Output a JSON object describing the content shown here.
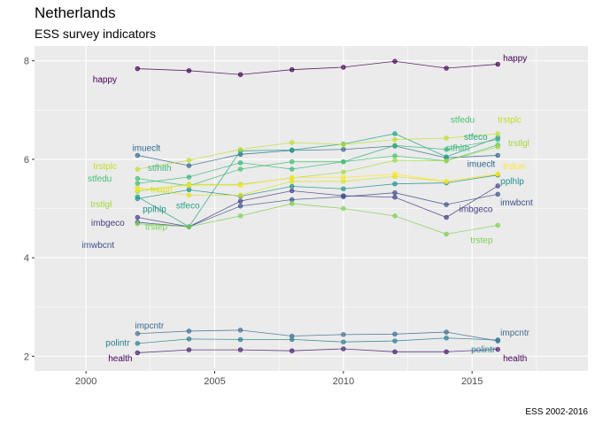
{
  "chart_data": {
    "type": "line",
    "title": "Netherlands",
    "subtitle": "ESS survey indicators",
    "caption": "ESS 2002-2016",
    "xlabel": "",
    "ylabel": "",
    "xlim": [
      1998,
      2019.5
    ],
    "ylim": [
      1.7,
      8.3
    ],
    "x_ticks": [
      2000,
      2005,
      2010,
      2015
    ],
    "y_ticks": [
      2,
      4,
      6,
      8
    ],
    "grid": true,
    "legend": "none (direct labels)",
    "x": [
      2002,
      2004,
      2006,
      2008,
      2010,
      2012,
      2014,
      2016
    ],
    "series": [
      {
        "name": "happy",
        "color": "#440154",
        "values": [
          7.84,
          7.8,
          7.72,
          7.82,
          7.87,
          7.99,
          7.85,
          7.93
        ]
      },
      {
        "name": "health",
        "color": "#481f70",
        "values": [
          2.07,
          2.13,
          2.13,
          2.11,
          2.15,
          2.09,
          2.09,
          2.14
        ]
      },
      {
        "name": "imbgeco",
        "color": "#433e85",
        "values": [
          4.82,
          4.63,
          5.15,
          5.36,
          5.26,
          5.23,
          4.82,
          5.46
        ]
      },
      {
        "name": "imwbcnt",
        "color": "#3b528b",
        "values": [
          4.72,
          4.63,
          5.05,
          5.18,
          5.24,
          5.32,
          5.08,
          5.29
        ]
      },
      {
        "name": "impcntr",
        "color": "#3e6b8f",
        "values": [
          2.46,
          2.51,
          2.53,
          2.41,
          2.44,
          2.45,
          2.49,
          2.31
        ]
      },
      {
        "name": "imuecl t",
        "color": "#31688e",
        "values": [
          6.08,
          5.87,
          6.1,
          6.18,
          6.2,
          6.27,
          6.03,
          6.08
        ]
      },
      {
        "name": "polintr",
        "color": "#287d8e",
        "values": [
          2.26,
          2.35,
          2.34,
          2.34,
          2.29,
          2.31,
          2.37,
          2.33
        ]
      },
      {
        "name": "pplhlp",
        "color": "#21918c",
        "values": [
          5.2,
          5.38,
          5.25,
          5.45,
          5.4,
          5.5,
          5.52,
          5.68
        ]
      },
      {
        "name": "stfeco",
        "color": "#20a386",
        "values": [
          5.24,
          4.63,
          6.17,
          6.19,
          6.31,
          6.52,
          6.05,
          6.44
        ]
      },
      {
        "name": "stfhlth",
        "color": "#35b779",
        "values": [
          5.51,
          5.64,
          5.93,
          5.8,
          5.95,
          6.28,
          6.2,
          6.4
        ]
      },
      {
        "name": "stfedu",
        "color": "#44bf70",
        "values": [
          5.61,
          5.46,
          5.8,
          5.95,
          5.95,
          6.07,
          5.97,
          6.29
        ]
      },
      {
        "name": "trstep",
        "color": "#7ad151",
        "values": [
          4.69,
          4.63,
          4.85,
          5.1,
          5.0,
          4.85,
          4.48,
          4.66
        ]
      },
      {
        "name": "trstlgl",
        "color": "#a0da39",
        "values": [
          5.35,
          5.49,
          5.49,
          5.62,
          5.74,
          5.98,
          5.97,
          6.25
        ]
      },
      {
        "name": "trstplc",
        "color": "#bddf26",
        "values": [
          5.8,
          5.98,
          6.2,
          6.34,
          6.3,
          6.4,
          6.43,
          6.52
        ]
      },
      {
        "name": "trstprl",
        "color": "#dae319",
        "values": [
          5.42,
          5.27,
          5.27,
          5.55,
          5.55,
          5.65,
          5.55,
          5.7
        ]
      },
      {
        "name": "trstun",
        "color": "#fde725",
        "values": [
          5.38,
          5.47,
          5.47,
          5.63,
          5.63,
          5.7,
          5.55,
          5.7
        ]
      }
    ],
    "labels": [
      {
        "text": "happy",
        "color": "#440154",
        "year": 2001.2,
        "value": 7.62,
        "anchor": "end"
      },
      {
        "text": "happy",
        "color": "#440154",
        "year": 2016.2,
        "value": 8.05,
        "anchor": "start"
      },
      {
        "text": "health",
        "color": "#440154",
        "year": 2001.8,
        "value": 1.95,
        "anchor": "end"
      },
      {
        "text": "health",
        "color": "#440154",
        "year": 2016.2,
        "value": 1.95,
        "anchor": "start"
      },
      {
        "text": "impcntr",
        "color": "#3e6b8f",
        "year": 2001.9,
        "value": 2.62,
        "anchor": "start"
      },
      {
        "text": "impcntr",
        "color": "#3e6b8f",
        "year": 2016.1,
        "value": 2.47,
        "anchor": "start"
      },
      {
        "text": "polintr",
        "color": "#287d8e",
        "year": 2001.7,
        "value": 2.27,
        "anchor": "end"
      },
      {
        "text": "polintr",
        "color": "#287d8e",
        "year": 2015.9,
        "value": 2.13,
        "anchor": "end"
      },
      {
        "text": "imueclt",
        "color": "#31688e",
        "year": 2001.8,
        "value": 6.22,
        "anchor": "start"
      },
      {
        "text": "imueclt",
        "color": "#31688e",
        "year": 2015.9,
        "value": 5.9,
        "anchor": "end"
      },
      {
        "text": "trstplc",
        "color": "#bddf26",
        "year": 2001.2,
        "value": 5.85,
        "anchor": "end"
      },
      {
        "text": "stfhlth",
        "color": "#35b779",
        "year": 2002.4,
        "value": 5.82,
        "anchor": "start"
      },
      {
        "text": "stfedu",
        "color": "#44bf70",
        "year": 2001.0,
        "value": 5.6,
        "anchor": "end"
      },
      {
        "text": "trstprl",
        "color": "#dae319",
        "year": 2002.5,
        "value": 5.38,
        "anchor": "start"
      },
      {
        "text": "trstlgl",
        "color": "#a0da39",
        "year": 2001.0,
        "value": 5.08,
        "anchor": "end"
      },
      {
        "text": "stfeco",
        "color": "#20a386",
        "year": 2003.5,
        "value": 5.05,
        "anchor": "start"
      },
      {
        "text": "pplhlp",
        "color": "#21918c",
        "year": 2002.2,
        "value": 4.98,
        "anchor": "start"
      },
      {
        "text": "imbgeco",
        "color": "#433e85",
        "year": 2001.5,
        "value": 4.7,
        "anchor": "end"
      },
      {
        "text": "trstep",
        "color": "#7ad151",
        "year": 2002.3,
        "value": 4.62,
        "anchor": "start"
      },
      {
        "text": "imwbcnt",
        "color": "#3b528b",
        "year": 2001.1,
        "value": 4.25,
        "anchor": "end"
      },
      {
        "text": "stfedu",
        "color": "#44bf70",
        "year": 2015.1,
        "value": 6.8,
        "anchor": "end"
      },
      {
        "text": "trstplc",
        "color": "#bddf26",
        "year": 2016.0,
        "value": 6.8,
        "anchor": "start"
      },
      {
        "text": "stfeco",
        "color": "#20a386",
        "year": 2015.6,
        "value": 6.45,
        "anchor": "end"
      },
      {
        "text": "stfhlth",
        "color": "#35b779",
        "year": 2014.9,
        "value": 6.22,
        "anchor": "end"
      },
      {
        "text": "trstlgl",
        "color": "#a0da39",
        "year": 2016.4,
        "value": 6.32,
        "anchor": "start"
      },
      {
        "text": "trstun",
        "color": "#fde725",
        "year": 2016.2,
        "value": 5.85,
        "anchor": "start"
      },
      {
        "text": "pplhlp",
        "color": "#21918c",
        "year": 2016.1,
        "value": 5.55,
        "anchor": "start"
      },
      {
        "text": "imwbcnt",
        "color": "#3b528b",
        "year": 2016.1,
        "value": 5.12,
        "anchor": "start"
      },
      {
        "text": "imbgeco",
        "color": "#433e85",
        "year": 2015.8,
        "value": 4.98,
        "anchor": "end"
      },
      {
        "text": "trstep",
        "color": "#7ad151",
        "year": 2015.8,
        "value": 4.35,
        "anchor": "end"
      }
    ]
  }
}
